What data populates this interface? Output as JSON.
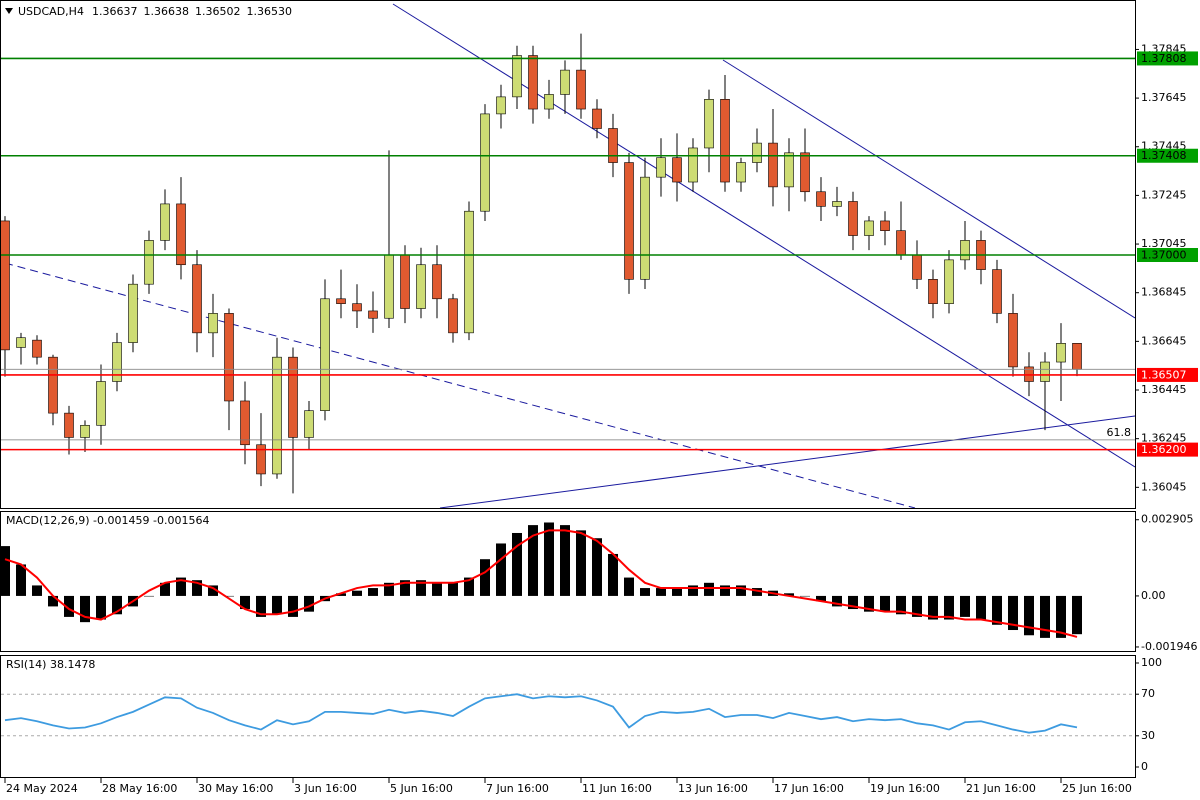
{
  "chart_data": [
    {
      "type": "candlestick",
      "title": "USDCAD,H4",
      "header_values": [
        "1.36637",
        "1.36638",
        "1.36502",
        "1.36530"
      ],
      "up_color": "#cddc74",
      "down_color": "#e05a30",
      "wick_color": "#000000",
      "xlim": [
        -0.3125,
        70.625
      ],
      "xticks": [
        {
          "value": 0,
          "label": "24 May 2024"
        },
        {
          "value": 6,
          "label": "28 May 16:00"
        },
        {
          "value": 12,
          "label": "30 May 16:00"
        },
        {
          "value": 18,
          "label": "3 Jun 16:00"
        },
        {
          "value": 24,
          "label": "5 Jun 16:00"
        },
        {
          "value": 30,
          "label": "7 Jun 16:00"
        },
        {
          "value": 36,
          "label": "11 Jun 16:00"
        },
        {
          "value": 42,
          "label": "13 Jun 16:00"
        },
        {
          "value": 48,
          "label": "17 Jun 16:00"
        },
        {
          "value": 54,
          "label": "19 Jun 16:00"
        },
        {
          "value": 60,
          "label": "21 Jun 16:00"
        },
        {
          "value": 66,
          "label": "25 Jun 16:00"
        }
      ],
      "ylim": [
        1.3596,
        1.3804
      ],
      "yticks": [
        1.36045,
        1.36245,
        1.36445,
        1.36645,
        1.36845,
        1.37045,
        1.37245,
        1.37445,
        1.37645,
        1.37845
      ],
      "open": [
        1.3714,
        1.3662,
        1.3665,
        1.3658,
        1.3635,
        1.3625,
        1.363,
        1.3648,
        1.3664,
        1.3688,
        1.3706,
        1.3721,
        1.3696,
        1.3668,
        1.3676,
        1.364,
        1.3622,
        1.361,
        1.3658,
        1.3625,
        1.3636,
        1.3682,
        1.368,
        1.3677,
        1.3674,
        1.37,
        1.3678,
        1.3696,
        1.3682,
        1.3668,
        1.3718,
        1.3758,
        1.3765,
        1.3782,
        1.376,
        1.3766,
        1.3776,
        1.376,
        1.3752,
        1.3738,
        1.369,
        1.3732,
        1.374,
        1.373,
        1.3744,
        1.3764,
        1.373,
        1.3738,
        1.3746,
        1.3728,
        1.3742,
        1.3726,
        1.372,
        1.3722,
        1.3708,
        1.3714,
        1.371,
        1.37,
        1.369,
        1.368,
        1.3698,
        1.3706,
        1.3694,
        1.3676,
        1.3654,
        1.3648,
        1.3656,
        1.36637
      ],
      "high": [
        1.3716,
        1.3668,
        1.3667,
        1.3659,
        1.3638,
        1.3632,
        1.3655,
        1.3668,
        1.3692,
        1.371,
        1.3727,
        1.3732,
        1.3702,
        1.3684,
        1.3678,
        1.3648,
        1.3635,
        1.3666,
        1.3662,
        1.364,
        1.369,
        1.3694,
        1.3688,
        1.3685,
        1.3743,
        1.3704,
        1.3703,
        1.3704,
        1.3684,
        1.3722,
        1.3762,
        1.377,
        1.3786,
        1.3786,
        1.3772,
        1.378,
        1.3791,
        1.3764,
        1.3758,
        1.3742,
        1.374,
        1.3748,
        1.375,
        1.3748,
        1.3768,
        1.3774,
        1.374,
        1.3752,
        1.376,
        1.3748,
        1.3752,
        1.3732,
        1.3728,
        1.3726,
        1.3716,
        1.3718,
        1.3722,
        1.3706,
        1.3694,
        1.3702,
        1.3714,
        1.371,
        1.3698,
        1.3684,
        1.366,
        1.366,
        1.3672,
        1.36638
      ],
      "low": [
        1.365,
        1.3655,
        1.3655,
        1.363,
        1.3618,
        1.3619,
        1.3622,
        1.3644,
        1.366,
        1.3684,
        1.3702,
        1.369,
        1.366,
        1.3658,
        1.3628,
        1.3614,
        1.3605,
        1.3608,
        1.3602,
        1.362,
        1.3632,
        1.3674,
        1.367,
        1.3668,
        1.367,
        1.3672,
        1.3674,
        1.3674,
        1.3664,
        1.3665,
        1.3714,
        1.3752,
        1.376,
        1.3754,
        1.3756,
        1.3758,
        1.3756,
        1.3748,
        1.3732,
        1.3684,
        1.3686,
        1.3724,
        1.3722,
        1.3726,
        1.3734,
        1.3726,
        1.3726,
        1.3734,
        1.372,
        1.3718,
        1.3722,
        1.3714,
        1.3716,
        1.3702,
        1.3702,
        1.3704,
        1.3698,
        1.3686,
        1.3674,
        1.3676,
        1.3694,
        1.3688,
        1.3672,
        1.365,
        1.3642,
        1.3628,
        1.364,
        1.36502
      ],
      "close": [
        1.3661,
        1.3666,
        1.3658,
        1.3635,
        1.3625,
        1.363,
        1.3648,
        1.3664,
        1.3688,
        1.3706,
        1.3721,
        1.3696,
        1.3668,
        1.3676,
        1.364,
        1.3622,
        1.361,
        1.3658,
        1.3625,
        1.3636,
        1.3682,
        1.368,
        1.3677,
        1.3674,
        1.37,
        1.3678,
        1.3696,
        1.3682,
        1.3668,
        1.3718,
        1.3758,
        1.3765,
        1.3782,
        1.376,
        1.3766,
        1.3776,
        1.376,
        1.3752,
        1.3738,
        1.369,
        1.3732,
        1.374,
        1.373,
        1.3744,
        1.3764,
        1.373,
        1.3738,
        1.3746,
        1.3728,
        1.3742,
        1.3726,
        1.372,
        1.3722,
        1.3708,
        1.3714,
        1.371,
        1.37,
        1.369,
        1.368,
        1.3698,
        1.3706,
        1.3694,
        1.3676,
        1.3654,
        1.3648,
        1.3656,
        1.36637,
        1.3653
      ],
      "levels": [
        {
          "value": 1.37808,
          "color": "#008000",
          "box_color": "#00a000",
          "text_color": "#000000"
        },
        {
          "value": 1.37408,
          "color": "#008000",
          "box_color": "#00a000",
          "text_color": "#000000"
        },
        {
          "value": 1.37,
          "label": "1.37000",
          "color": "#008000",
          "box_color": "#00a000",
          "text_color": "#000000"
        },
        {
          "value": 1.36507,
          "color": "#ff0000",
          "box_color": "#ff0000",
          "text_color": "#ffffff"
        },
        {
          "value": 1.362,
          "label": "1.36200",
          "color": "#ff0000",
          "box_color": "#ff0000",
          "text_color": "#ffffff"
        }
      ],
      "fib_ratio": 61.8,
      "fib_price": 1.3624
    },
    {
      "type": "macd",
      "title": "MACD(12,26,9) -0.001459 -0.001564",
      "ylim": [
        -0.0021,
        0.0032
      ],
      "yticks": [
        -0.001946,
        {
          "value": 0,
          "label": "0.00"
        },
        0.002905
      ],
      "series": [
        {
          "name": "MACD",
          "color": "#000000",
          "values": [
            0.0019,
            0.0012,
            0.0004,
            -0.0004,
            -0.0008,
            -0.001,
            -0.0009,
            -0.0007,
            -0.0004,
            0.0,
            0.0005,
            0.0007,
            0.0006,
            0.0004,
            0.0,
            -0.0005,
            -0.0008,
            -0.0007,
            -0.0008,
            -0.0006,
            -0.0002,
            0.0001,
            0.0002,
            0.0003,
            0.0005,
            0.0006,
            0.0006,
            0.0005,
            0.0005,
            0.0007,
            0.0014,
            0.002,
            0.0024,
            0.0027,
            0.0028,
            0.0027,
            0.0025,
            0.0022,
            0.0016,
            0.0007,
            0.0003,
            0.0003,
            0.0003,
            0.0004,
            0.0005,
            0.0004,
            0.0004,
            0.0003,
            0.0002,
            0.0001,
            0.0,
            -0.0002,
            -0.0004,
            -0.0005,
            -0.0006,
            -0.0006,
            -0.0007,
            -0.0008,
            -0.0009,
            -0.0009,
            -0.0008,
            -0.0009,
            -0.0011,
            -0.0013,
            -0.0015,
            -0.0016,
            -0.0016,
            -0.001459
          ]
        },
        {
          "name": "Signal",
          "color": "#ff0000",
          "values": [
            0.0014,
            0.0012,
            0.0007,
            0.0,
            -0.0005,
            -0.0008,
            -0.0009,
            -0.0006,
            -0.0002,
            0.0002,
            0.0005,
            0.0006,
            0.0005,
            0.0003,
            -0.0001,
            -0.0005,
            -0.0007,
            -0.0007,
            -0.0006,
            -0.0004,
            -0.0001,
            0.0001,
            0.0003,
            0.0004,
            0.0004,
            0.0005,
            0.0005,
            0.0005,
            0.0005,
            0.0006,
            0.0009,
            0.0014,
            0.0019,
            0.0023,
            0.0025,
            0.0025,
            0.0024,
            0.0021,
            0.0016,
            0.001,
            0.0005,
            0.0003,
            0.0003,
            0.0003,
            0.0003,
            0.0003,
            0.0003,
            0.0002,
            0.0001,
            0.0,
            -0.0001,
            -0.0002,
            -0.0003,
            -0.0004,
            -0.0005,
            -0.0006,
            -0.0006,
            -0.0007,
            -0.0008,
            -0.0008,
            -0.0009,
            -0.0009,
            -0.001,
            -0.0011,
            -0.0012,
            -0.0013,
            -0.0014,
            -0.001564
          ]
        }
      ]
    },
    {
      "type": "line",
      "title": "RSI(14) 38.1478",
      "ylim": [
        0,
        100
      ],
      "yticks": [
        0,
        30,
        70,
        100
      ],
      "levels": [
        30,
        70
      ],
      "color": "#3d9be0",
      "values": [
        45,
        47,
        44,
        40,
        37,
        38,
        42,
        48,
        53,
        60,
        67,
        66,
        57,
        52,
        45,
        40,
        36,
        45,
        41,
        44,
        53,
        53,
        52,
        51,
        55,
        52,
        54,
        52,
        49,
        58,
        66,
        68,
        70,
        66,
        68,
        67,
        68,
        64,
        58,
        38,
        49,
        53,
        52,
        53,
        56,
        48,
        50,
        50,
        47,
        52,
        49,
        46,
        48,
        44,
        46,
        45,
        46,
        42,
        40,
        36,
        43,
        44,
        40,
        36,
        33,
        35,
        41,
        38.1478
      ]
    }
  ]
}
